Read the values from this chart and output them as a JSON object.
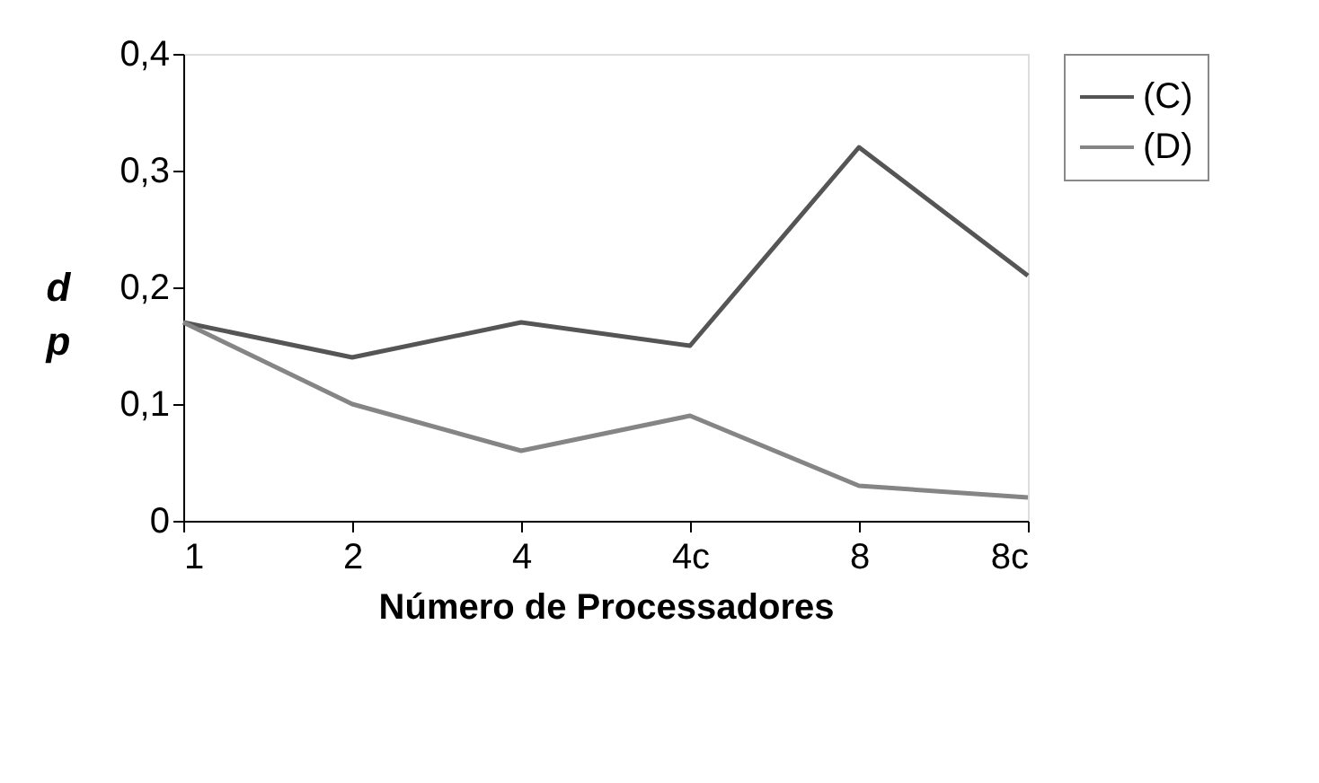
{
  "chart_data": {
    "type": "line",
    "xlabel": "Número de Processadores",
    "ylabel": "dp",
    "categories": [
      "1",
      "2",
      "4",
      "4c",
      "8",
      "8c"
    ],
    "series": [
      {
        "name": "(C)",
        "color": "#555555",
        "values": [
          0.17,
          0.14,
          0.17,
          0.15,
          0.32,
          0.21
        ]
      },
      {
        "name": "(D)",
        "color": "#858585",
        "values": [
          0.17,
          0.1,
          0.06,
          0.09,
          0.03,
          0.02
        ]
      }
    ],
    "ylim": [
      0,
      0.4
    ],
    "yticks": [
      0,
      {
        "value": 0.1,
        "label": "0,1"
      },
      {
        "value": 0.2,
        "label": "0,2"
      },
      {
        "value": 0.3,
        "label": "0,3"
      },
      {
        "value": 0.4,
        "label": "0,4"
      }
    ],
    "grid": false,
    "legend": "right",
    "marker": "none",
    "line_style": "solid"
  }
}
